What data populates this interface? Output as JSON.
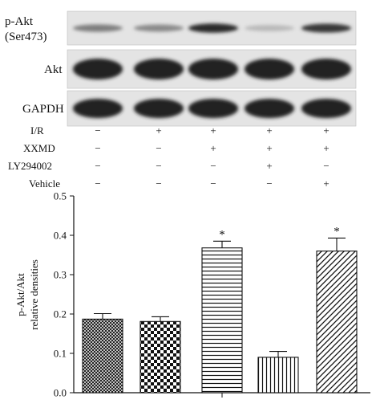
{
  "blots": {
    "rows": [
      {
        "label_lines": [
          "p-Akt",
          "(Ser473)"
        ],
        "intensities": [
          0.55,
          0.5,
          0.9,
          0.3,
          0.85
        ],
        "band_kind": "thin"
      },
      {
        "label_lines": [
          "Akt"
        ],
        "intensities": [
          0.95,
          0.95,
          0.95,
          0.95,
          0.95
        ],
        "band_kind": "thick"
      },
      {
        "label_lines": [
          "GAPDH"
        ],
        "intensities": [
          0.95,
          0.95,
          0.95,
          0.95,
          0.95
        ],
        "band_kind": "thick"
      }
    ]
  },
  "conditions": {
    "rows": [
      {
        "label": "I/R",
        "marks": [
          "−",
          "+",
          "+",
          "+",
          "+"
        ]
      },
      {
        "label": "XXMD",
        "marks": [
          "−",
          "−",
          "+",
          "+",
          "+"
        ]
      },
      {
        "label": "LY294002",
        "marks": [
          "−",
          "−",
          "−",
          "+",
          "−"
        ]
      },
      {
        "label": "Vehicle",
        "marks": [
          "−",
          "−",
          "−",
          "−",
          "+"
        ]
      }
    ]
  },
  "chart_data": {
    "type": "bar",
    "title": "",
    "xlabel": "",
    "ylabel_lines": [
      "p-Akt/Akt",
      "relative densities"
    ],
    "ylim": [
      0,
      0.5
    ],
    "yticks": [
      "0.0",
      "0.1",
      "0.2",
      "0.3",
      "0.4",
      "0.5"
    ],
    "categories": [
      "",
      "",
      "",
      "",
      ""
    ],
    "values": [
      0.187,
      0.181,
      0.368,
      0.09,
      0.36
    ],
    "errors": [
      0.014,
      0.012,
      0.017,
      0.015,
      0.033
    ],
    "patterns": [
      "crosshatch",
      "checker",
      "horizontal-lines",
      "vertical-lines",
      "diagonal-lines"
    ],
    "annotations": [
      "",
      "",
      "*",
      "",
      "*"
    ],
    "grid": false,
    "legend": "none"
  }
}
